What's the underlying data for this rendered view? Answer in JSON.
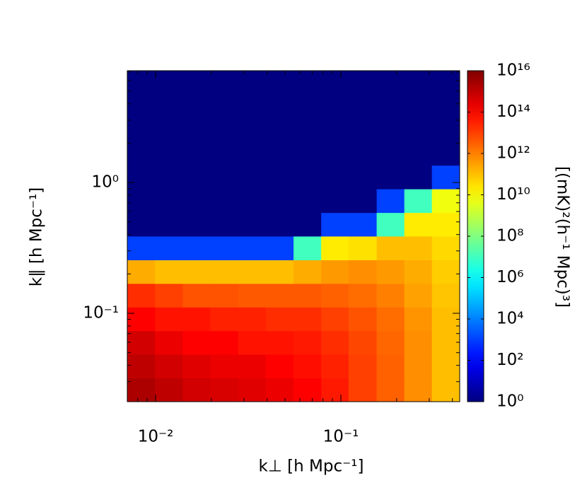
{
  "chart_data": {
    "type": "heatmap",
    "xlabel": "k⊥  [h Mpc⁻¹]",
    "ylabel": "k∥ [h Mpc⁻¹]",
    "colorbar_label": "[(mK)²(h⁻¹ Mpc)³]",
    "xscale": "log",
    "yscale": "log",
    "cscale": "log",
    "colormap": "jet",
    "xlim": [
      0.00703,
      0.438
    ],
    "ylim": [
      0.0211,
      7.16
    ],
    "clim": [
      1,
      1e+16
    ],
    "xticks": [
      {
        "value": 0.01,
        "label": "10⁻²"
      },
      {
        "value": 0.1,
        "label": "10⁻¹"
      }
    ],
    "xminor": [
      0.008,
      0.009,
      0.02,
      0.03,
      0.04,
      0.05,
      0.06,
      0.07,
      0.08,
      0.09,
      0.2,
      0.3,
      0.4
    ],
    "yticks": [
      {
        "value": 0.1,
        "label": "10⁻¹"
      },
      {
        "value": 1,
        "label": "10⁰"
      }
    ],
    "yminor": [
      0.03,
      0.04,
      0.05,
      0.06,
      0.07,
      0.08,
      0.09,
      0.2,
      0.3,
      0.4,
      0.5,
      0.6,
      0.7,
      0.8,
      0.9,
      2,
      3,
      4,
      5,
      6,
      7
    ],
    "cticks": [
      {
        "value": 1,
        "label": "10⁰"
      },
      {
        "value": 100,
        "label": "10²"
      },
      {
        "value": 10000,
        "label": "10⁴"
      },
      {
        "value": 1000000,
        "label": "10⁶"
      },
      {
        "value": 100000000,
        "label": "10⁸"
      },
      {
        "value": 10000000000.0,
        "label": "10¹⁰"
      },
      {
        "value": 1000000000000.0,
        "label": "10¹²"
      },
      {
        "value": 100000000000000.0,
        "label": "10¹⁴"
      },
      {
        "value": 1e+16,
        "label": "10¹⁶"
      }
    ],
    "xbins": [
      0.00703,
      0.00992,
      0.014,
      0.0197,
      0.0279,
      0.0393,
      0.0555,
      0.0783,
      0.11,
      0.156,
      0.22,
      0.31,
      0.438
    ],
    "ybins": [
      0.0211,
      0.032,
      0.0485,
      0.0735,
      0.1115,
      0.169,
      0.256,
      0.389,
      0.589,
      0.894,
      1.355,
      2.055,
      3.116,
      4.724,
      7.16
    ],
    "z": [
      [
        2000000000000000.0,
        1000000000000000.0,
        500000000000000.0,
        400000000000000.0,
        300000000000000.0,
        200000000000000.0,
        100000000000000.0,
        40000000000000.0,
        10000000000000.0,
        3000000000000.0,
        600000000000.0,
        100000000000.0
      ],
      [
        1000000000000000.0,
        500000000000000.0,
        300000000000000.0,
        200000000000000.0,
        200000000000000.0,
        100000000000000.0,
        60000000000000.0,
        30000000000000.0,
        10000000000000.0,
        3000000000000.0,
        600000000000.0,
        100000000000.0
      ],
      [
        500000000000000.0,
        200000000000000.0,
        100000000000000.0,
        100000000000000.0,
        50000000000000.0,
        50000000000000.0,
        40000000000000.0,
        20000000000000.0,
        8000000000000.0,
        2500000000000.0,
        600000000000.0,
        100000000000.0
      ],
      [
        100000000000000.0,
        50000000000000.0,
        50000000000000.0,
        30000000000000.0,
        30000000000000.0,
        20000000000000.0,
        20000000000000.0,
        10000000000000.0,
        5000000000000.0,
        2000000000000.0,
        500000000000.0,
        100000000000.0
      ],
      [
        20000000000000.0,
        10000000000000.0,
        5000000000000.0,
        5000000000000.0,
        4000000000000.0,
        4000000000000.0,
        4000000000000.0,
        3000000000000.0,
        2000000000000.0,
        1000000000000.0,
        300000000000.0,
        80000000000.0
      ],
      [
        200000000000.0,
        100000000000.0,
        100000000000.0,
        100000000000.0,
        100000000000.0,
        100000000000.0,
        200000000000.0,
        400000000000.0,
        600000000000.0,
        400000000000.0,
        200000000000.0,
        60000000000.0
      ],
      [
        1000,
        1000,
        1000,
        1000,
        1000,
        1000,
        10000000.0,
        20000000000.0,
        30000000000.0,
        100000000000.0,
        100000000000.0,
        40000000000.0
      ],
      [
        1,
        1,
        1,
        1,
        1,
        1,
        1,
        1000,
        1000,
        10000000.0,
        20000000000.0,
        20000000000.0
      ],
      [
        1,
        1,
        1,
        1,
        1,
        1,
        1,
        1,
        1,
        1000,
        10000000.0,
        6000000000.0
      ],
      [
        1,
        1,
        1,
        1,
        1,
        1,
        1,
        1,
        1,
        1,
        1,
        1000
      ],
      [
        1,
        1,
        1,
        1,
        1,
        1,
        1,
        1,
        1,
        1,
        1,
        1
      ],
      [
        1,
        1,
        1,
        1,
        1,
        1,
        1,
        1,
        1,
        1,
        1,
        1
      ],
      [
        1,
        1,
        1,
        1,
        1,
        1,
        1,
        1,
        1,
        1,
        1,
        1
      ],
      [
        1,
        1,
        1,
        1,
        1,
        1,
        1,
        1,
        1,
        1,
        1,
        1
      ]
    ]
  }
}
